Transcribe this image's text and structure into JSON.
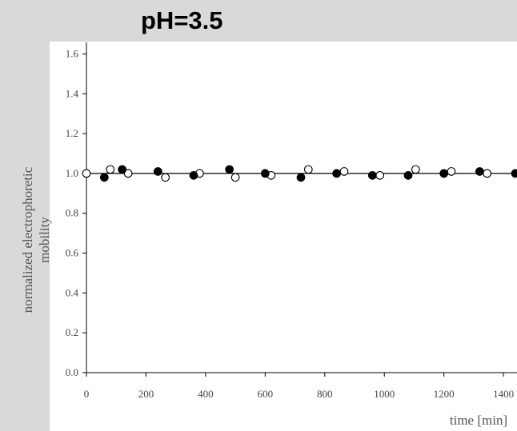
{
  "title": "pH=3.5",
  "chart_data": {
    "type": "scatter",
    "xlabel": "time [min]",
    "ylabel": "normalized electrophoretic mobility",
    "xlim": [
      0,
      1440
    ],
    "ylim": [
      0,
      1.65
    ],
    "xticks": [
      0,
      200,
      400,
      600,
      800,
      1000,
      1200,
      1400
    ],
    "yticks": [
      0.0,
      0.2,
      0.4,
      0.6,
      0.8,
      1.0,
      1.2,
      1.4,
      1.6
    ],
    "ytick_labels": [
      "0.0",
      "0.2",
      "0.4",
      "0.6",
      "0.8",
      "1.0",
      "1.2",
      "1.4",
      "1.6"
    ],
    "reference_line": 1.0,
    "grid": false,
    "series": [
      {
        "marker": "filled-circle",
        "color": "#000000",
        "points": [
          [
            60,
            0.98
          ],
          [
            120,
            1.02
          ],
          [
            240,
            1.01
          ],
          [
            360,
            0.99
          ],
          [
            480,
            1.02
          ],
          [
            600,
            1.0
          ],
          [
            720,
            0.98
          ],
          [
            840,
            1.0
          ],
          [
            960,
            0.99
          ],
          [
            1080,
            0.99
          ],
          [
            1200,
            1.0
          ],
          [
            1320,
            1.01
          ],
          [
            1440,
            1.0
          ]
        ]
      },
      {
        "marker": "open-circle",
        "color": "#000000",
        "points": [
          [
            0,
            1.0
          ],
          [
            80,
            1.02
          ],
          [
            140,
            1.0
          ],
          [
            265,
            0.98
          ],
          [
            380,
            1.0
          ],
          [
            500,
            0.98
          ],
          [
            620,
            0.99
          ],
          [
            745,
            1.02
          ],
          [
            865,
            1.01
          ],
          [
            985,
            0.99
          ],
          [
            1105,
            1.02
          ],
          [
            1225,
            1.01
          ],
          [
            1345,
            1.0
          ]
        ]
      }
    ]
  }
}
